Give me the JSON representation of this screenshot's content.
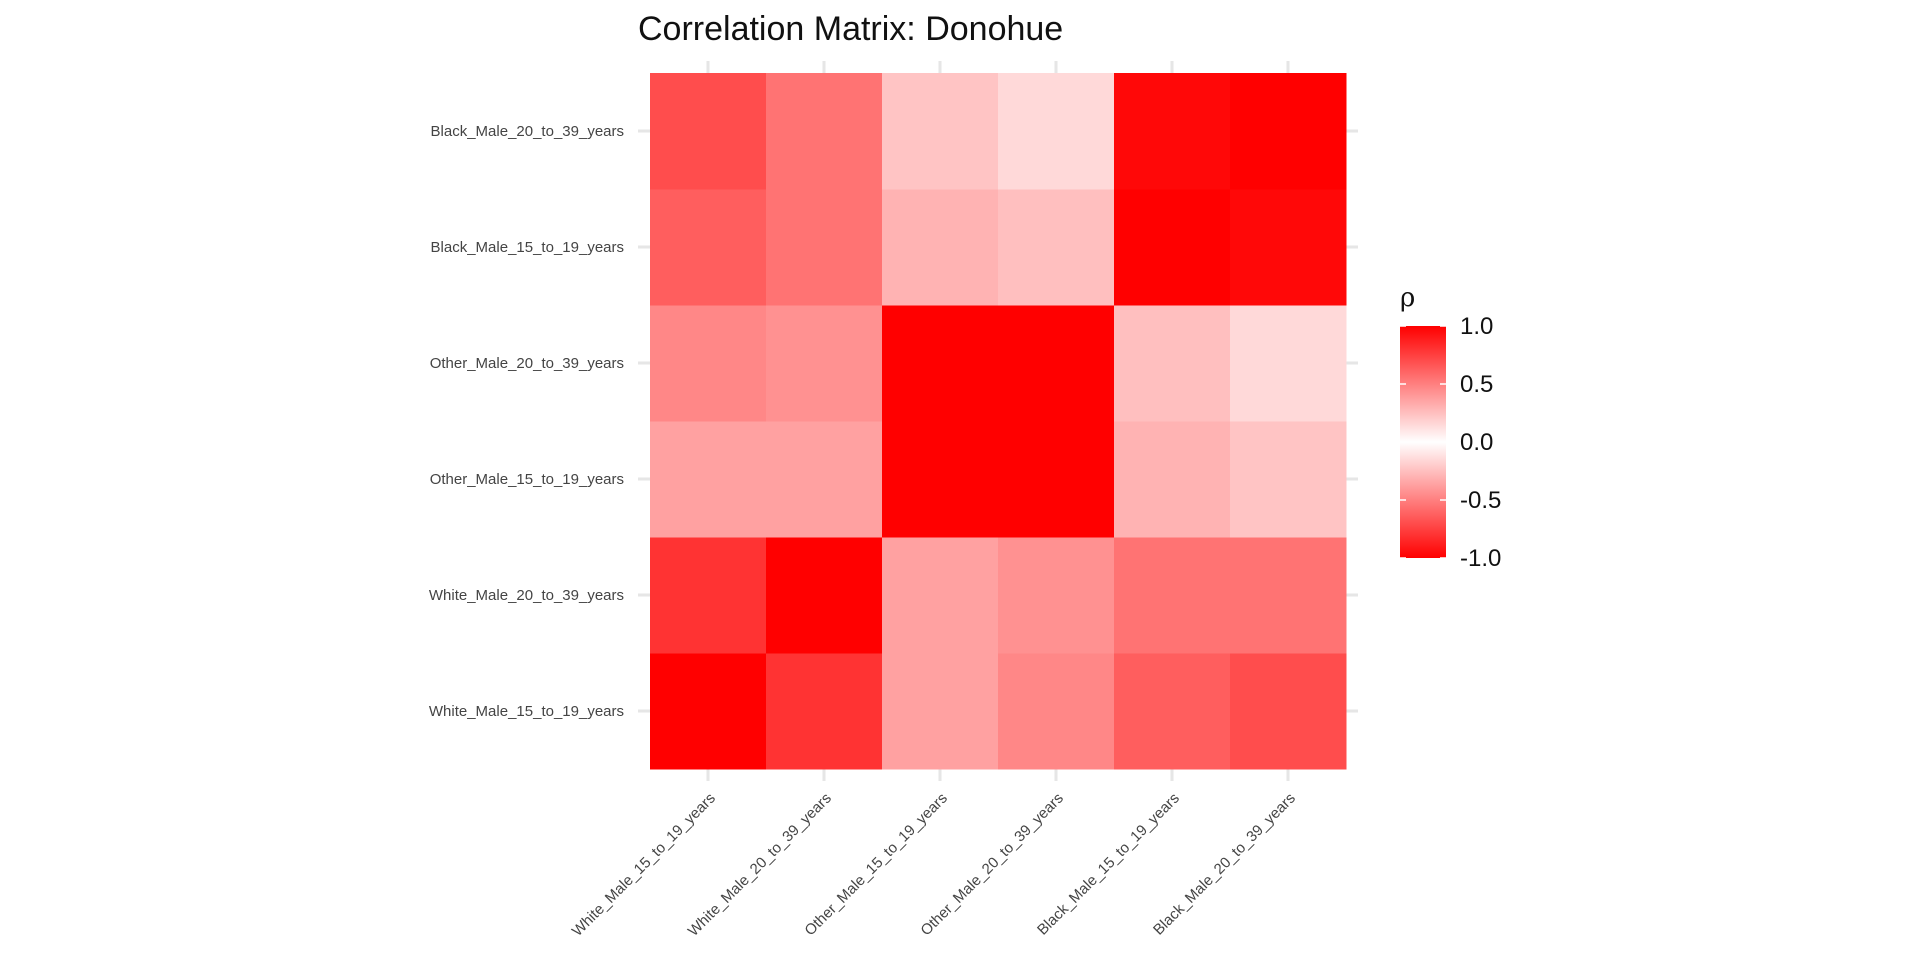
{
  "chart_data": {
    "type": "heatmap",
    "title": "Correlation Matrix: Donohue",
    "variables": [
      "White_Male_15_to_19_years",
      "White_Male_20_to_39_years",
      "Other_Male_15_to_19_years",
      "Other_Male_20_to_39_years",
      "Black_Male_15_to_19_years",
      "Black_Male_20_to_39_years"
    ],
    "values": [
      [
        1.0,
        0.8,
        0.37,
        0.47,
        0.63,
        0.7
      ],
      [
        0.8,
        1.0,
        0.37,
        0.43,
        0.55,
        0.55
      ],
      [
        0.37,
        0.37,
        1.0,
        1.0,
        0.3,
        0.23
      ],
      [
        0.47,
        0.43,
        1.0,
        1.0,
        0.25,
        0.15
      ],
      [
        0.63,
        0.55,
        0.3,
        0.25,
        1.0,
        0.97
      ],
      [
        0.7,
        0.55,
        0.23,
        0.15,
        0.97,
        1.0
      ]
    ],
    "legend": {
      "title": "ρ",
      "ticks": [
        "1.0",
        "0.5",
        "0.0",
        "-0.5",
        "-1.0"
      ],
      "range": [
        -1,
        1
      ],
      "placement": "right"
    },
    "colors": {
      "high": "#ff0000",
      "mid": "#ffffff",
      "low": "#ff0000"
    },
    "grid": true
  }
}
